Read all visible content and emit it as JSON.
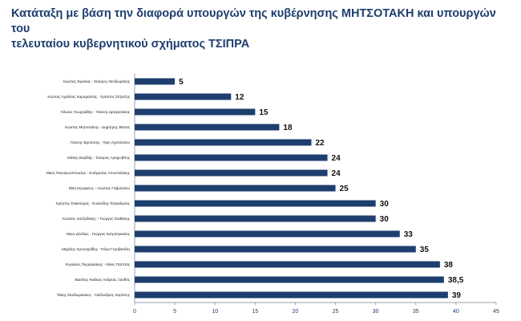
{
  "chart_data": {
    "type": "bar",
    "orientation": "horizontal",
    "title_line1": "Κατάταξη  με βάση την διαφορά υπουργών της κυβέρνησης ΜΗΤΣΟΤΑΚΗ και υπουργών  του",
    "title_line2": "τελευταίου κυβερνητικού σχήματος  ΤΣΙΠΡΑ",
    "categories": [
      "Κώστας Χατζηδάκης – Γιώργος Σταθάκης",
      "Νίκος Δένδιας - Γιώργος Κατρούγκαλος",
      "Μιχάλης Χρυσοχοΐδης - Όλγα Γεροβασίλη",
      "Κυριάκος Πιερρακάκης - Νίκος Παππάς",
      "Βασίλης Κικίλιας                     Ανδρέας Ξανθός",
      "Τάκης Θεοδωρικάκος - Αλέξανδρος Χαρίτσης",
      "Κώστας Αχιλλέας Καραμανλής - Χρήστος Σπίρτζης",
      "Άδωνις Γεωργιάδης - Γιάννης Δραγασάκης",
      "Κώστας Μητσοτάκης - Δημήτρης Βίτσας",
      "Γιάννης Βρούτσης - Έφη Αχτσιόγλου",
      "Μάκης Βορίδης - Σταύρος Αραχωβίτης",
      "Νίκος Παναγιωτόπουλος - Ευάγγελος Αποστολάκης",
      "Νίκη Κεραμέως – Κώστας Γαβρόγλου",
      "Χρήστος Σταϊκούρας - Ευκλείδης Τσακαλώτος",
      "Κώστας Σκρέκας - Σταύρος Θεοδωράκης"
    ],
    "bars": [
      {
        "label": "Κώστας Σκρέκας - Σταύρος Θεοδωράκης",
        "value": 5,
        "value_label": "5"
      },
      {
        "label": "Κώστας Αχιλλέας Καραμανλής - Χρήστος Σπίρτζης",
        "value": 12,
        "value_label": "12"
      },
      {
        "label": "Άδωνις Γεωργιάδης - Γιάννης Δραγασάκης",
        "value": 15,
        "value_label": "15"
      },
      {
        "label": "Κώστας Μητσοτάκης - Δημήτρης Βίτσας",
        "value": 18,
        "value_label": "18"
      },
      {
        "label": "Γιάννης Βρούτσης - Έφη Αχτσιόγλου",
        "value": 22,
        "value_label": "22"
      },
      {
        "label": "Μάκης Βορίδης - Σταύρος Αραχωβίτης",
        "value": 24,
        "value_label": "24"
      },
      {
        "label": "Νίκος Παναγιωτόπουλος - Ευάγγελος Αποστολάκης",
        "value": 24,
        "value_label": "24"
      },
      {
        "label": "Νίκη Κεραμέως – Κώστας Γαβρόγλου",
        "value": 25,
        "value_label": "25"
      },
      {
        "label": "Χρήστος Σταϊκούρας - Ευκλείδης Τσακαλώτος",
        "value": 30,
        "value_label": "30"
      },
      {
        "label": "Κώστας Χατζηδάκης – Γιώργος Σταθάκης",
        "value": 30,
        "value_label": "30"
      },
      {
        "label": "Νίκος Δένδιας - Γιώργος Κατρούγκαλος",
        "value": 33,
        "value_label": "33"
      },
      {
        "label": "Μιχάλης Χρυσοχοΐδης - Όλγα Γεροβασίλη",
        "value": 35,
        "value_label": "35"
      },
      {
        "label": "Κυριάκος Πιερρακάκης - Νίκος Παππάς",
        "value": 38,
        "value_label": "38"
      },
      {
        "label": "Βασίλης Κικίλιας                     Ανδρέας Ξανθός",
        "value": 38.5,
        "value_label": "38,5"
      },
      {
        "label": "Τάκης Θεοδωρικάκος - Αλέξανδρος Χαρίτσης",
        "value": 39,
        "value_label": "39"
      }
    ],
    "xlim": [
      0,
      45
    ],
    "xticks": [
      0,
      5,
      10,
      15,
      20,
      25,
      30,
      35,
      40,
      45
    ],
    "grid": false,
    "bar_color": "#1d3e6e",
    "xlabel": "",
    "ylabel": ""
  }
}
